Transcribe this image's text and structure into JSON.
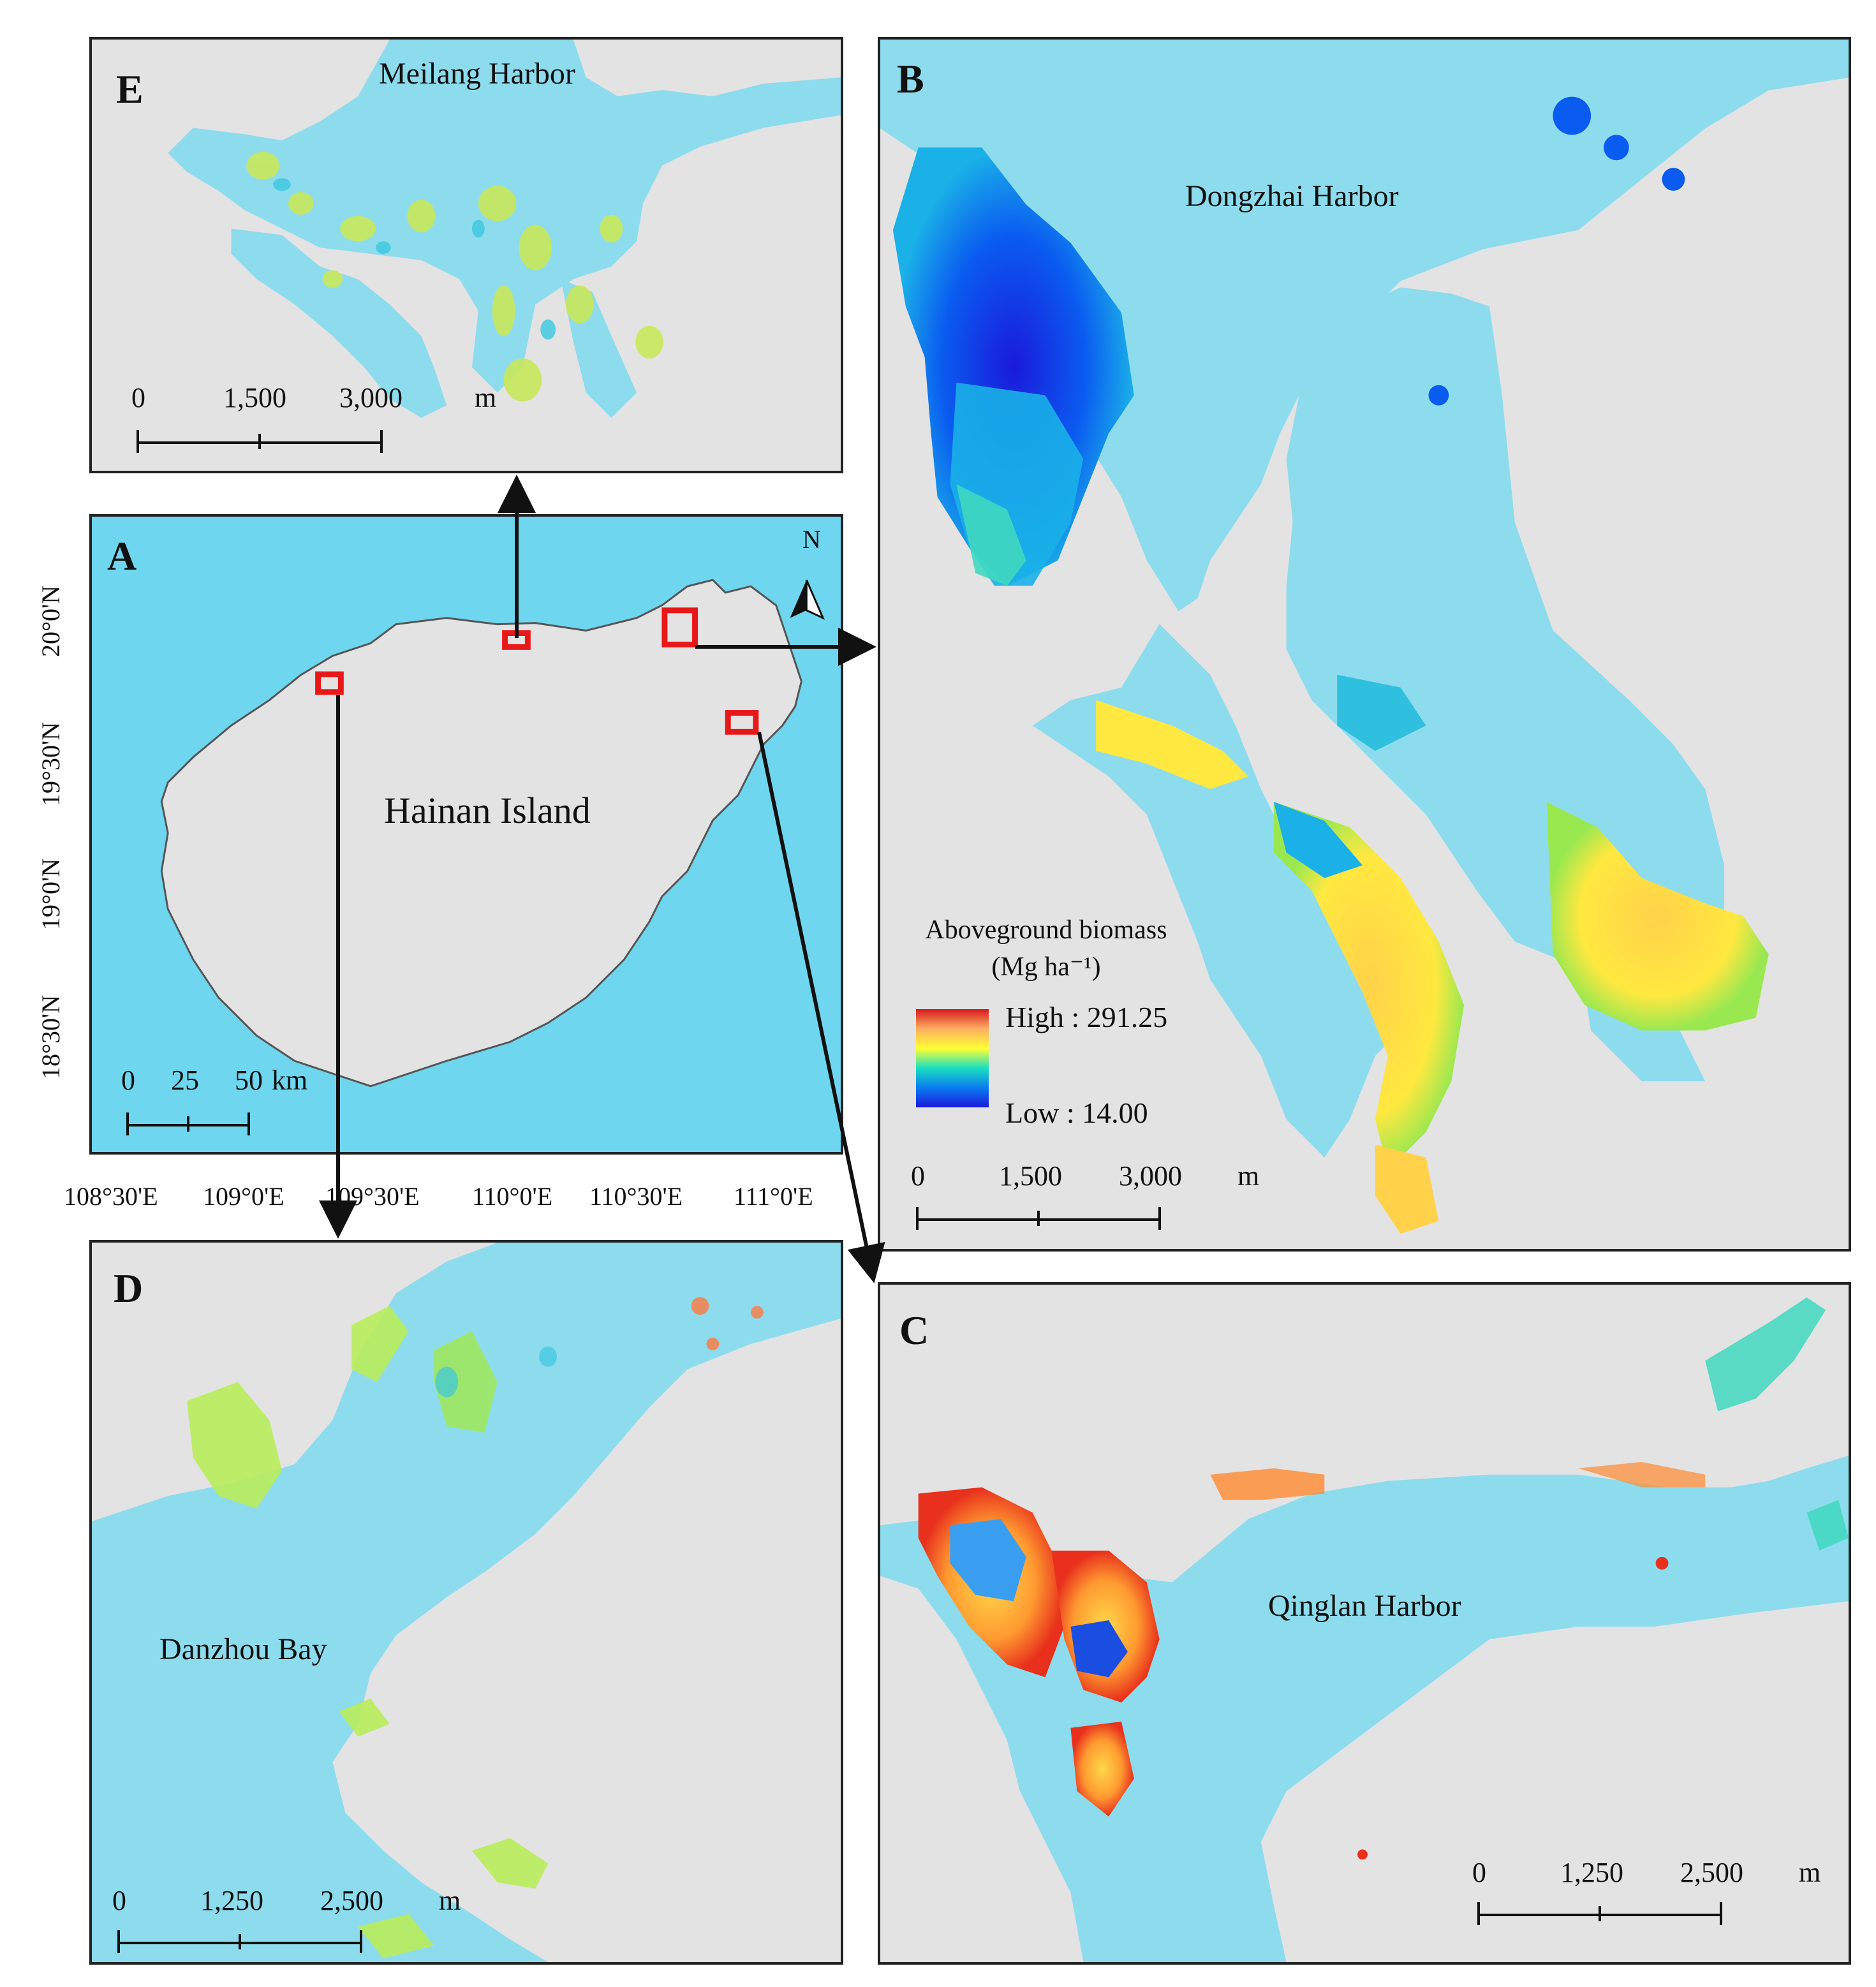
{
  "panels": {
    "A": {
      "label": "A",
      "title": "Hainan Island",
      "north": "N",
      "scalebar": [
        "0",
        "25",
        "50"
      ],
      "unit": "km",
      "lat_labels": [
        "20°0'N",
        "19°30'N",
        "19°0'N",
        "18°30'N"
      ],
      "lon_labels": [
        "108°30'E",
        "109°0'E",
        "109°30'E",
        "110°0'E",
        "110°30'E",
        "111°0'E"
      ]
    },
    "B": {
      "label": "B",
      "title": "Dongzhai Harbor",
      "scalebar": [
        "0",
        "1,500",
        "3,000"
      ],
      "unit": "m"
    },
    "C": {
      "label": "C",
      "title": "Qinglan Harbor",
      "scalebar": [
        "0",
        "1,250",
        "2,500"
      ],
      "unit": "m"
    },
    "D": {
      "label": "D",
      "title": "Danzhou Bay",
      "scalebar": [
        "0",
        "1,250",
        "2,500"
      ],
      "unit": "m"
    },
    "E": {
      "label": "E",
      "title": "Meilang Harbor",
      "scalebar": [
        "0",
        "1,500",
        "3,000"
      ],
      "unit": "m"
    }
  },
  "legend": {
    "title_line1": "Aboveground biomass",
    "title_line2": "(Mg ha⁻¹)",
    "high": "High : 291.25",
    "low": "Low : 14.00",
    "gradient": [
      "#d7191c",
      "#fdae61",
      "#ffff33",
      "#1ae0c0",
      "#0a7cf0",
      "#1a1adb"
    ]
  },
  "colors": {
    "sea": "#6fd6ef",
    "land": "#e3e3e3",
    "water_detail": "#8ddcee",
    "inset_box": "#e81818",
    "frame": "#222222"
  }
}
